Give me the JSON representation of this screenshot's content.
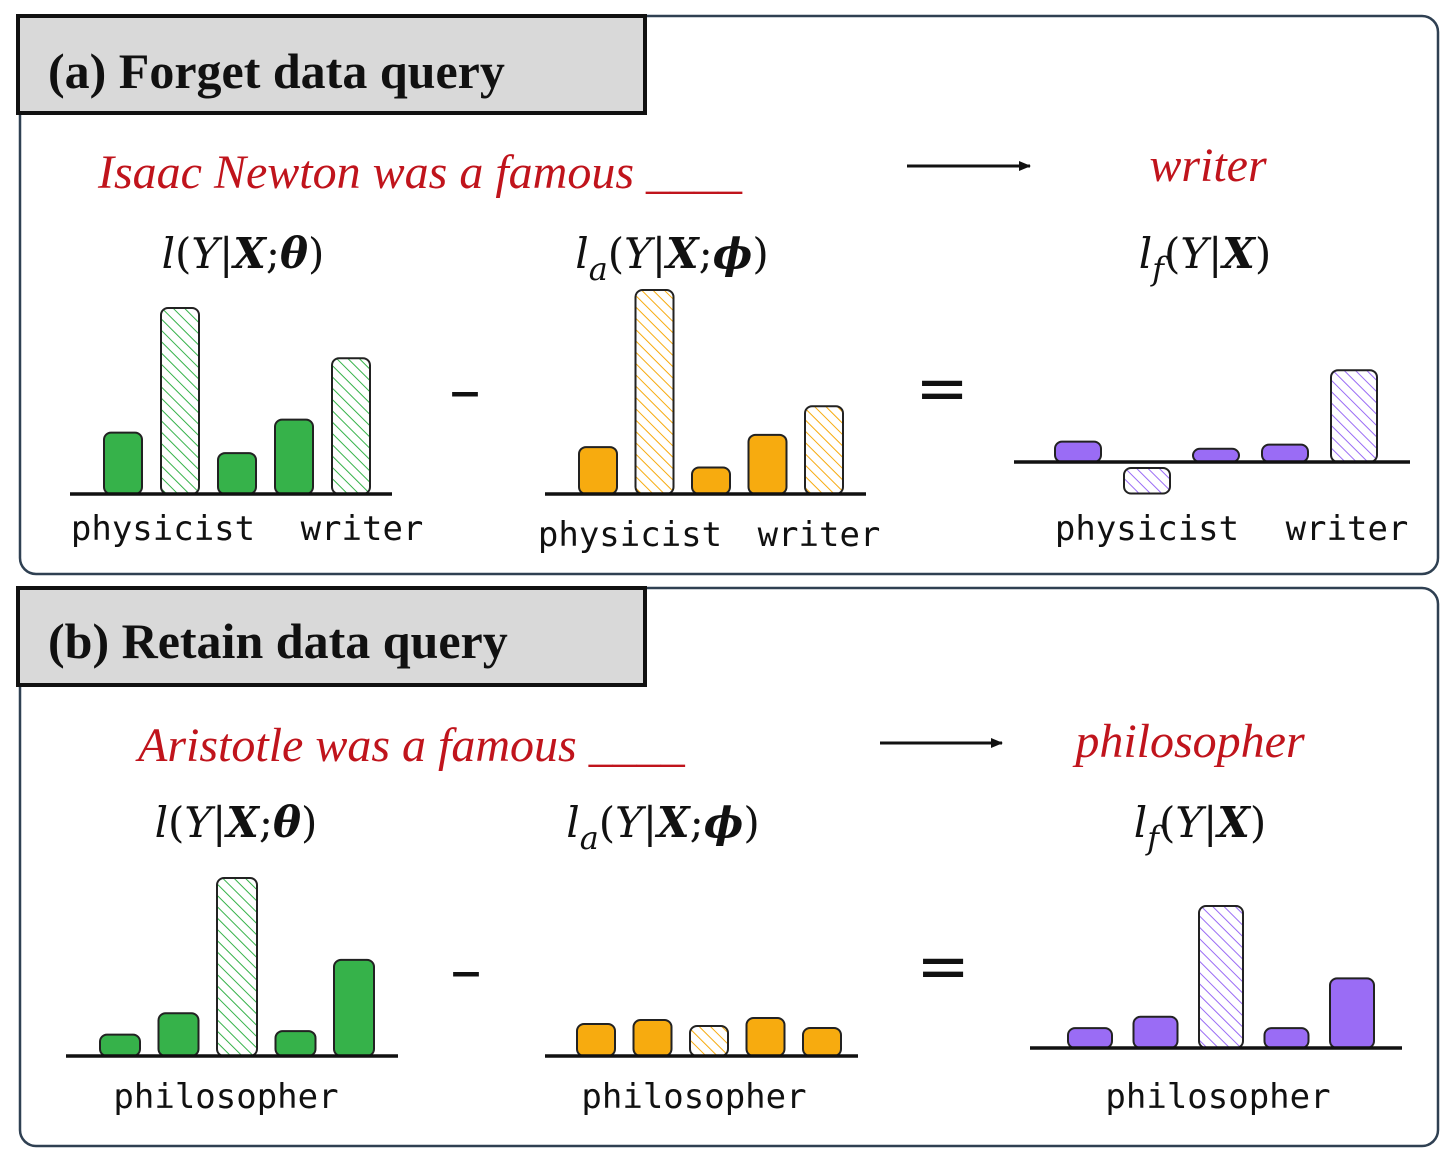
{
  "colors": {
    "original_model": "#36b24a",
    "assistant_model": "#f7ab0f",
    "forget_logits": "#9a6cf5",
    "sentence_text": "#c0141c",
    "title_box": "#d9d9d9",
    "panel_border": "#2f4052"
  },
  "panels": [
    {
      "title": "(a) Forget data query",
      "sentence": "Isaac Newton was a famous ____",
      "answer": "writer",
      "operator_minus": "–",
      "operator_equals": "="
    },
    {
      "title": "(b) Retain data query",
      "sentence": "Aristotle was a famous ____",
      "answer": "philosopher",
      "operator_minus": "–",
      "operator_equals": "="
    }
  ],
  "formulas": {
    "original": {
      "l": "l",
      "open": "(",
      "y": "Y",
      "bar": "|",
      "x": "X",
      "semi": ";",
      "param": "θ",
      "close": ")"
    },
    "assistant": {
      "l": "l",
      "sub": "a",
      "open": "(",
      "y": "Y",
      "bar": "|",
      "x": "X",
      "semi": ";",
      "param": "ϕ",
      "close": ")"
    },
    "forget": {
      "l": "l",
      "sub": "f",
      "open": "(",
      "y": "Y",
      "bar": "|",
      "x": "X",
      "close": ")"
    }
  },
  "chart_data": [
    {
      "type": "bar",
      "panel": "a",
      "title": "l(Y|X;θ)",
      "tick_labels": [
        "physicist",
        "writer"
      ],
      "values": [
        0.33,
        1.0,
        0.22,
        0.4,
        0.73
      ],
      "hatched": [
        false,
        true,
        false,
        false,
        true
      ],
      "color": "#36b24a"
    },
    {
      "type": "bar",
      "panel": "a",
      "title": "l_a(Y|X;ϕ)",
      "tick_labels": [
        "physicist",
        "writer"
      ],
      "values": [
        0.23,
        1.0,
        0.13,
        0.29,
        0.43
      ],
      "hatched": [
        false,
        true,
        false,
        false,
        true
      ],
      "color": "#f7ab0f"
    },
    {
      "type": "bar",
      "panel": "a",
      "title": "l_f(Y|X)",
      "tick_labels": [
        "physicist",
        "writer"
      ],
      "values": [
        0.2,
        -0.25,
        0.13,
        0.17,
        0.9
      ],
      "hatched": [
        false,
        true,
        false,
        false,
        true
      ],
      "color": "#9a6cf5"
    },
    {
      "type": "bar",
      "panel": "b",
      "title": "l(Y|X;θ)",
      "tick_labels": [
        "philosopher"
      ],
      "values": [
        0.12,
        0.24,
        1.0,
        0.14,
        0.54
      ],
      "hatched": [
        false,
        false,
        true,
        false,
        false
      ],
      "color": "#36b24a"
    },
    {
      "type": "bar",
      "panel": "b",
      "title": "l_a(Y|X;ϕ)",
      "tick_labels": [
        "philosopher"
      ],
      "values": [
        0.16,
        0.18,
        0.15,
        0.19,
        0.14
      ],
      "hatched": [
        false,
        false,
        true,
        false,
        false
      ],
      "color": "#f7ab0f"
    },
    {
      "type": "bar",
      "panel": "b",
      "title": "l_f(Y|X)",
      "tick_labels": [
        "philosopher"
      ],
      "values": [
        0.14,
        0.22,
        1.0,
        0.14,
        0.49
      ],
      "hatched": [
        false,
        false,
        true,
        false,
        false
      ],
      "color": "#9a6cf5"
    }
  ]
}
